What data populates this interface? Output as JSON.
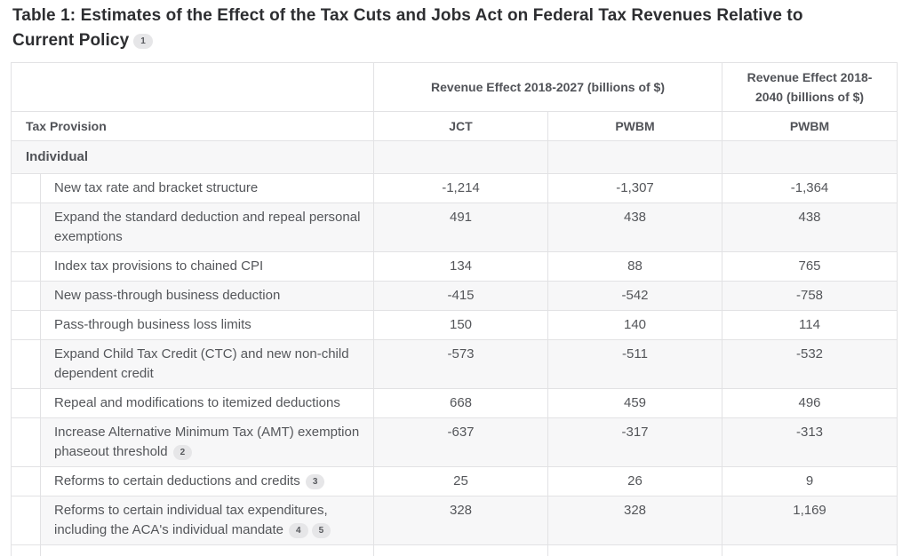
{
  "page": {
    "title_line1": "Table 1: Estimates of the Effect of the Tax Cuts and Jobs Act on Federal Tax Revenues Relative to",
    "title_line2": "Current Policy",
    "title_footnote": "1"
  },
  "table": {
    "header": {
      "group_2018_2027": "Revenue Effect 2018-2027 (billions of $)",
      "group_2018_2040": "Revenue Effect 2018-2040 (billions of $)",
      "col_provision": "Tax Provision",
      "col_jct": "JCT",
      "col_pwbm": "PWBM",
      "col_pwbm_2040": "PWBM"
    },
    "section_label": "Individual",
    "rows": [
      {
        "provision": "New tax rate and bracket structure",
        "jct": "-1,214",
        "pwbm": "-1,307",
        "pwbm_2040": "-1,364"
      },
      {
        "provision": "Expand the standard deduction and repeal personal exemptions",
        "jct": "491",
        "pwbm": "438",
        "pwbm_2040": "438"
      },
      {
        "provision": "Index tax provisions to chained CPI",
        "jct": "134",
        "pwbm": "88",
        "pwbm_2040": "765"
      },
      {
        "provision": "New pass-through business deduction",
        "jct": "-415",
        "pwbm": "-542",
        "pwbm_2040": "-758"
      },
      {
        "provision": "Pass-through business loss limits",
        "jct": "150",
        "pwbm": "140",
        "pwbm_2040": "114"
      },
      {
        "provision": "Expand Child Tax Credit (CTC) and new non-child dependent credit",
        "jct": "-573",
        "pwbm": "-511",
        "pwbm_2040": "-532"
      },
      {
        "provision": "Repeal and modifications to itemized deductions",
        "jct": "668",
        "pwbm": "459",
        "pwbm_2040": "496"
      },
      {
        "provision": "Increase Alternative Minimum Tax (AMT) exemption phaseout threshold",
        "footnotes": [
          "2"
        ],
        "jct": "-637",
        "pwbm": "-317",
        "pwbm_2040": "-313"
      },
      {
        "provision": "Reforms to certain deductions and credits",
        "footnotes": [
          "3"
        ],
        "jct": "25",
        "pwbm": "26",
        "pwbm_2040": "9"
      },
      {
        "provision": "Reforms to certain individual tax expenditures, including the ACA's individual mandate",
        "footnotes": [
          "4",
          "5"
        ],
        "jct": "328",
        "pwbm": "328",
        "pwbm_2040": "1,169"
      }
    ],
    "colors": {
      "text": "#54565a",
      "title_text": "#2d2e31",
      "border": "#e2e2e4",
      "row_alt_bg": "#f7f7f8",
      "badge_bg": "#e6e6e8"
    }
  },
  "chart_data": {
    "type": "table",
    "title": "Table 1: Estimates of the Effect of the Tax Cuts and Jobs Act on Federal Tax Revenues Relative to Current Policy",
    "columns": [
      "Tax Provision",
      "JCT (Revenue Effect 2018-2027, billions of $)",
      "PWBM (Revenue Effect 2018-2027, billions of $)",
      "PWBM (Revenue Effect 2018-2040, billions of $)"
    ],
    "section": "Individual",
    "rows": [
      [
        "New tax rate and bracket structure",
        -1214,
        -1307,
        -1364
      ],
      [
        "Expand the standard deduction and repeal personal exemptions",
        491,
        438,
        438
      ],
      [
        "Index tax provisions to chained CPI",
        134,
        88,
        765
      ],
      [
        "New pass-through business deduction",
        -415,
        -542,
        -758
      ],
      [
        "Pass-through business loss limits",
        150,
        140,
        114
      ],
      [
        "Expand Child Tax Credit (CTC) and new non-child dependent credit",
        -573,
        -511,
        -532
      ],
      [
        "Repeal and modifications to itemized deductions",
        668,
        459,
        496
      ],
      [
        "Increase Alternative Minimum Tax (AMT) exemption phaseout threshold",
        -637,
        -317,
        -313
      ],
      [
        "Reforms to certain deductions and credits",
        25,
        26,
        9
      ],
      [
        "Reforms to certain individual tax expenditures, including the ACA's individual mandate",
        328,
        328,
        1169
      ]
    ]
  }
}
